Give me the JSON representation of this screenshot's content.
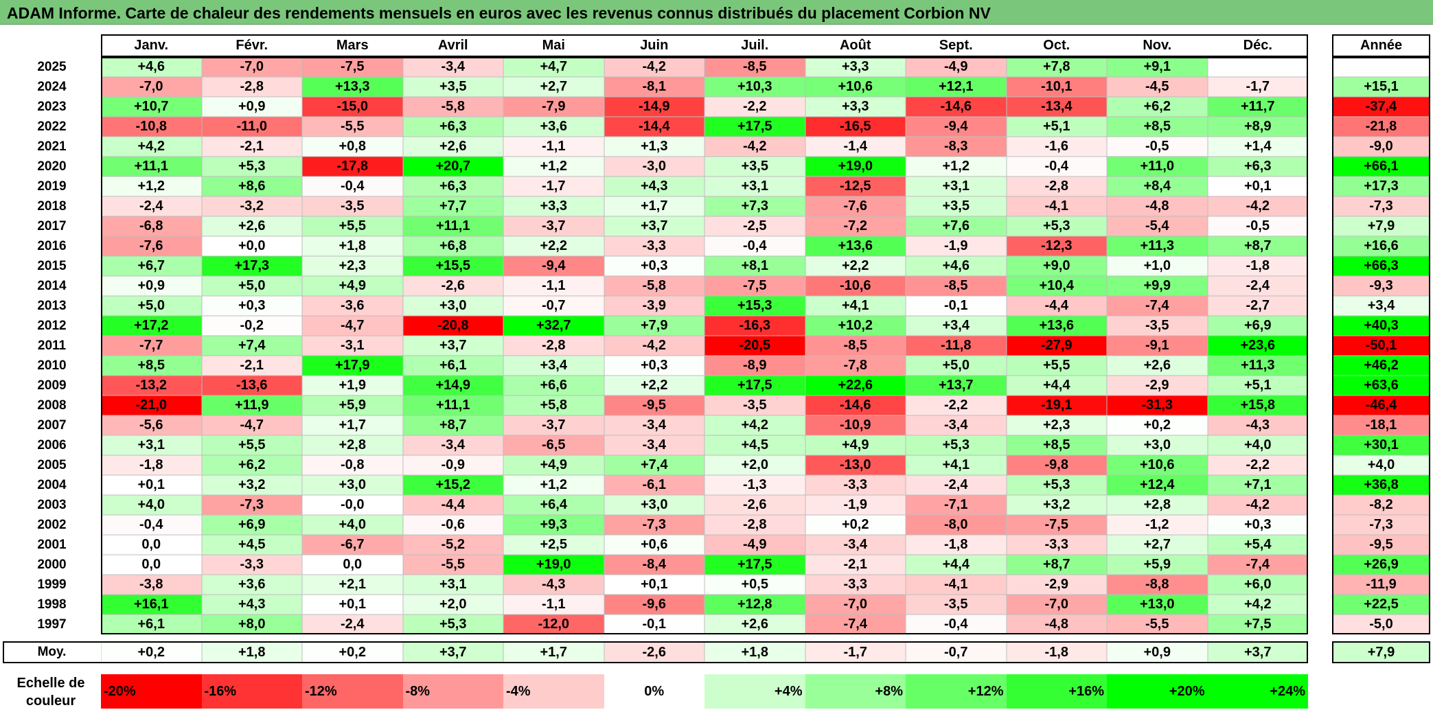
{
  "title": "ADAM Informe. Carte de chaleur des rendements mensuels en euros avec les revenus connus distribués du placement Corbion NV",
  "chart_data": {
    "type": "heatmap",
    "columns": [
      "Janv.",
      "Févr.",
      "Mars",
      "Avril",
      "Mai",
      "Juin",
      "Juil.",
      "Août",
      "Sept.",
      "Oct.",
      "Nov.",
      "Déc."
    ],
    "annual_header": "Année",
    "rows": [
      {
        "year": "2025",
        "months": [
          "+4,6",
          "-7,0",
          "-7,5",
          "-3,4",
          "+4,7",
          "-4,2",
          "-8,5",
          "+3,3",
          "-4,9",
          "+7,8",
          "+9,1",
          ""
        ],
        "annual": ""
      },
      {
        "year": "2024",
        "months": [
          "-7,0",
          "-2,8",
          "+13,3",
          "+3,5",
          "+2,7",
          "-8,1",
          "+10,3",
          "+10,6",
          "+12,1",
          "-10,1",
          "-4,5",
          "-1,7"
        ],
        "annual": "+15,1"
      },
      {
        "year": "2023",
        "months": [
          "+10,7",
          "+0,9",
          "-15,0",
          "-5,8",
          "-7,9",
          "-14,9",
          "-2,2",
          "+3,3",
          "-14,6",
          "-13,4",
          "+6,2",
          "+11,7"
        ],
        "annual": "-37,4"
      },
      {
        "year": "2022",
        "months": [
          "-10,8",
          "-11,0",
          "-5,5",
          "+6,3",
          "+3,6",
          "-14,4",
          "+17,5",
          "-16,5",
          "-9,4",
          "+5,1",
          "+8,5",
          "+8,9"
        ],
        "annual": "-21,8"
      },
      {
        "year": "2021",
        "months": [
          "+4,2",
          "-2,1",
          "+0,8",
          "+2,6",
          "-1,1",
          "+1,3",
          "-4,2",
          "-1,4",
          "-8,3",
          "-1,6",
          "-0,5",
          "+1,4"
        ],
        "annual": "-9,0"
      },
      {
        "year": "2020",
        "months": [
          "+11,1",
          "+5,3",
          "-17,8",
          "+20,7",
          "+1,2",
          "-3,0",
          "+3,5",
          "+19,0",
          "+1,2",
          "-0,4",
          "+11,0",
          "+6,3"
        ],
        "annual": "+66,1"
      },
      {
        "year": "2019",
        "months": [
          "+1,2",
          "+8,6",
          "-0,4",
          "+6,3",
          "-1,7",
          "+4,3",
          "+3,1",
          "-12,5",
          "+3,1",
          "-2,8",
          "+8,4",
          "+0,1"
        ],
        "annual": "+17,3"
      },
      {
        "year": "2018",
        "months": [
          "-2,4",
          "-3,2",
          "-3,5",
          "+7,7",
          "+3,3",
          "+1,7",
          "+7,3",
          "-7,6",
          "+3,5",
          "-4,1",
          "-4,8",
          "-4,2"
        ],
        "annual": "-7,3"
      },
      {
        "year": "2017",
        "months": [
          "-6,8",
          "+2,6",
          "+5,5",
          "+11,1",
          "-3,7",
          "+3,7",
          "-2,5",
          "-7,2",
          "+7,6",
          "+5,3",
          "-5,4",
          "-0,5"
        ],
        "annual": "+7,9"
      },
      {
        "year": "2016",
        "months": [
          "-7,6",
          "+0,0",
          "+1,8",
          "+6,8",
          "+2,2",
          "-3,3",
          "-0,4",
          "+13,6",
          "-1,9",
          "-12,3",
          "+11,3",
          "+8,7"
        ],
        "annual": "+16,6"
      },
      {
        "year": "2015",
        "months": [
          "+6,7",
          "+17,3",
          "+2,3",
          "+15,5",
          "-9,4",
          "+0,3",
          "+8,1",
          "+2,2",
          "+4,6",
          "+9,0",
          "+1,0",
          "-1,8"
        ],
        "annual": "+66,3"
      },
      {
        "year": "2014",
        "months": [
          "+0,9",
          "+5,0",
          "+4,9",
          "-2,6",
          "-1,1",
          "-5,8",
          "-7,5",
          "-10,6",
          "-8,5",
          "+10,4",
          "+9,9",
          "-2,4"
        ],
        "annual": "-9,3"
      },
      {
        "year": "2013",
        "months": [
          "+5,0",
          "+0,3",
          "-3,6",
          "+3,0",
          "-0,7",
          "-3,9",
          "+15,3",
          "+4,1",
          "-0,1",
          "-4,4",
          "-7,4",
          "-2,7"
        ],
        "annual": "+3,4"
      },
      {
        "year": "2012",
        "months": [
          "+17,2",
          "-0,2",
          "-4,7",
          "-20,8",
          "+32,7",
          "+7,9",
          "-16,3",
          "+10,2",
          "+3,4",
          "+13,6",
          "-3,5",
          "+6,9"
        ],
        "annual": "+40,3"
      },
      {
        "year": "2011",
        "months": [
          "-7,7",
          "+7,4",
          "-3,1",
          "+3,7",
          "-2,8",
          "-4,2",
          "-20,5",
          "-8,5",
          "-11,8",
          "-27,9",
          "-9,1",
          "+23,6"
        ],
        "annual": "-50,1"
      },
      {
        "year": "2010",
        "months": [
          "+8,5",
          "-2,1",
          "+17,9",
          "+6,1",
          "+3,4",
          "+0,3",
          "-8,9",
          "-7,8",
          "+5,0",
          "+5,5",
          "+2,6",
          "+11,3"
        ],
        "annual": "+46,2"
      },
      {
        "year": "2009",
        "months": [
          "-13,2",
          "-13,6",
          "+1,9",
          "+14,9",
          "+6,6",
          "+2,2",
          "+17,5",
          "+22,6",
          "+13,7",
          "+4,4",
          "-2,9",
          "+5,1"
        ],
        "annual": "+63,6"
      },
      {
        "year": "2008",
        "months": [
          "-21,0",
          "+11,9",
          "+5,9",
          "+11,1",
          "+5,8",
          "-9,5",
          "-3,5",
          "-14,6",
          "-2,2",
          "-19,1",
          "-31,3",
          "+15,8"
        ],
        "annual": "-46,4"
      },
      {
        "year": "2007",
        "months": [
          "-5,6",
          "-4,7",
          "+1,7",
          "+8,7",
          "-3,7",
          "-3,4",
          "+4,2",
          "-10,9",
          "-3,4",
          "+2,3",
          "+0,2",
          "-4,3"
        ],
        "annual": "-18,1"
      },
      {
        "year": "2006",
        "months": [
          "+3,1",
          "+5,5",
          "+2,8",
          "-3,4",
          "-6,5",
          "-3,4",
          "+4,5",
          "+4,9",
          "+5,3",
          "+8,5",
          "+3,0",
          "+4,0"
        ],
        "annual": "+30,1"
      },
      {
        "year": "2005",
        "months": [
          "-1,8",
          "+6,2",
          "-0,8",
          "-0,9",
          "+4,9",
          "+7,4",
          "+2,0",
          "-13,0",
          "+4,1",
          "-9,8",
          "+10,6",
          "-2,2"
        ],
        "annual": "+4,0"
      },
      {
        "year": "2004",
        "months": [
          "+0,1",
          "+3,2",
          "+3,0",
          "+15,2",
          "+1,2",
          "-6,1",
          "-1,3",
          "-3,3",
          "-2,4",
          "+5,3",
          "+12,4",
          "+7,1"
        ],
        "annual": "+36,8"
      },
      {
        "year": "2003",
        "months": [
          "+4,0",
          "-7,3",
          "-0,0",
          "-4,4",
          "+6,4",
          "+3,0",
          "-2,6",
          "-1,9",
          "-7,1",
          "+3,2",
          "+2,8",
          "-4,2"
        ],
        "annual": "-8,2"
      },
      {
        "year": "2002",
        "months": [
          "-0,4",
          "+6,9",
          "+4,0",
          "-0,6",
          "+9,3",
          "-7,3",
          "-2,8",
          "+0,2",
          "-8,0",
          "-7,5",
          "-1,2",
          "+0,3"
        ],
        "annual": "-7,3"
      },
      {
        "year": "2001",
        "months": [
          "0,0",
          "+4,5",
          "-6,7",
          "-5,2",
          "+2,5",
          "+0,6",
          "-4,9",
          "-3,4",
          "-1,8",
          "-3,3",
          "+2,7",
          "+5,4"
        ],
        "annual": "-9,5"
      },
      {
        "year": "2000",
        "months": [
          "0,0",
          "-3,3",
          "0,0",
          "-5,5",
          "+19,0",
          "-8,4",
          "+17,5",
          "-2,1",
          "+4,4",
          "+8,7",
          "+5,9",
          "-7,4"
        ],
        "annual": "+26,9"
      },
      {
        "year": "1999",
        "months": [
          "-3,8",
          "+3,6",
          "+2,1",
          "+3,1",
          "-4,3",
          "+0,1",
          "+0,5",
          "-3,3",
          "-4,1",
          "-2,9",
          "-8,8",
          "+6,0"
        ],
        "annual": "-11,9"
      },
      {
        "year": "1998",
        "months": [
          "+16,1",
          "+4,3",
          "+0,1",
          "+2,0",
          "-1,1",
          "-9,6",
          "+12,8",
          "-7,0",
          "-3,5",
          "-7,0",
          "+13,0",
          "+4,2"
        ],
        "annual": "+22,5"
      },
      {
        "year": "1997",
        "months": [
          "+6,1",
          "+8,0",
          "-2,4",
          "+5,3",
          "-12,0",
          "-0,1",
          "+2,6",
          "-7,4",
          "-0,4",
          "-4,8",
          "-5,5",
          "+7,5"
        ],
        "annual": "-5,0"
      }
    ],
    "average": {
      "label": "Moy.",
      "months": [
        "+0,2",
        "+1,8",
        "+0,2",
        "+3,7",
        "+1,7",
        "-2,6",
        "+1,8",
        "-1,7",
        "-0,7",
        "-1,8",
        "+0,9",
        "+3,7"
      ],
      "annual": "+7,9"
    },
    "scale": {
      "label_line1": "Echelle de",
      "label_line2": "couleur",
      "steps": [
        {
          "label": "-20%",
          "value": -20
        },
        {
          "label": "-16%",
          "value": -16
        },
        {
          "label": "-12%",
          "value": -12
        },
        {
          "label": "-8%",
          "value": -8
        },
        {
          "label": "-4%",
          "value": -4
        },
        {
          "label": "0%",
          "value": 0
        },
        {
          "label": "+4%",
          "value": 4
        },
        {
          "label": "+8%",
          "value": 8
        },
        {
          "label": "+12%",
          "value": 12
        },
        {
          "label": "+16%",
          "value": 16
        },
        {
          "label": "+20%",
          "value": 20
        },
        {
          "label": "+24%",
          "value": 24
        }
      ]
    },
    "colors": {
      "negative": "#ff0000",
      "neutral": "#ffffff",
      "positive": "#00ff00",
      "title_bar": "#7ac77b"
    }
  }
}
